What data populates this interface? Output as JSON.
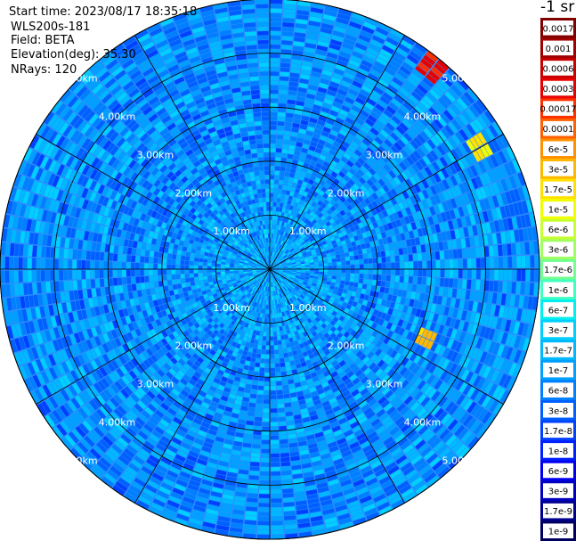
{
  "info": {
    "start_time": "Start time: 2023/08/17 18:35:18",
    "station": "WLS200s-181",
    "field": "Field: BETA",
    "elevation": "Elevation(deg): 35.30",
    "nrays": "NRays: 120"
  },
  "colorbar": {
    "unit": "-1 sr",
    "labels": [
      "0.0017",
      "0.001",
      "0.0006",
      "0.0003",
      "0.00017",
      "0.0001",
      "6e-5",
      "3e-5",
      "1.7e-5",
      "1e-5",
      "6e-6",
      "3e-6",
      "1.7e-6",
      "1e-6",
      "6e-7",
      "3e-7",
      "1.7e-7",
      "1e-7",
      "6e-8",
      "3e-8",
      "1.7e-8",
      "1e-8",
      "6e-9",
      "3e-9",
      "1.7e-9",
      "1e-9"
    ],
    "colors": [
      "#800000",
      "#a00000",
      "#c80000",
      "#e80000",
      "#ff3000",
      "#ff6000",
      "#ff9000",
      "#ffb800",
      "#ffe000",
      "#f0ff00",
      "#c8ff30",
      "#a0ff60",
      "#70ff90",
      "#40ffc0",
      "#00f0f0",
      "#00d0ff",
      "#00b8ff",
      "#00a0ff",
      "#0080ff",
      "#0060ff",
      "#0040ff",
      "#0020ff",
      "#0000f0",
      "#0000c0",
      "#000090",
      "#000060"
    ]
  },
  "chart_data": {
    "type": "heatmap",
    "projection": "polar (PPI scan)",
    "field": "BETA",
    "rays": 120,
    "max_range_km": 5.0,
    "range_rings_km": [
      1.0,
      2.0,
      3.0,
      4.0,
      5.0
    ],
    "range_ring_labels": [
      "1.00km",
      "2.00km",
      "3.00km",
      "4.00km",
      "5.00km"
    ],
    "colorscale": "log",
    "value_range": [
      1e-09,
      0.0017
    ],
    "typical_value": "about 1e-7 to 3e-7",
    "hotspots": [
      {
        "azimuth_deg": 40,
        "range_km": [
          4.6,
          5.2
        ],
        "peak_value": 0.0006
      },
      {
        "azimuth_deg": 60,
        "range_km": [
          4.3,
          4.7
        ],
        "peak_value": 3e-05
      },
      {
        "azimuth_deg": 114,
        "range_km": [
          3.0,
          3.3
        ],
        "peak_value": 6e-05
      }
    ]
  }
}
